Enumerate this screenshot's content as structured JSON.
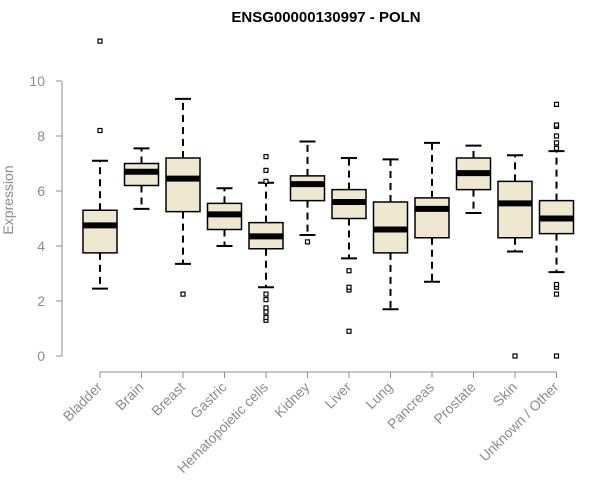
{
  "chart_data": {
    "type": "boxplot",
    "title": "ENSG00000130997 - POLN",
    "xlabel": "",
    "ylabel": "Expression",
    "ylim": [
      0,
      11.5
    ],
    "yticks": [
      0,
      2,
      4,
      6,
      8,
      10
    ],
    "categories": [
      "Bladder",
      "Brain",
      "Breast",
      "Gastric",
      "Hematopoietic cells",
      "Kidney",
      "Liver",
      "Lung",
      "Pancreas",
      "Prostate",
      "Skin",
      "Unknown / Other"
    ],
    "boxes": [
      {
        "whisker_low": 2.45,
        "q1": 3.75,
        "median": 4.75,
        "q3": 5.3,
        "whisker_high": 7.1,
        "outliers": [
          8.2,
          11.45
        ]
      },
      {
        "whisker_low": 5.35,
        "q1": 6.2,
        "median": 6.7,
        "q3": 7.0,
        "whisker_high": 7.55,
        "outliers": []
      },
      {
        "whisker_low": 3.35,
        "q1": 5.25,
        "median": 6.45,
        "q3": 7.2,
        "whisker_high": 9.35,
        "outliers": [
          2.25
        ]
      },
      {
        "whisker_low": 4.0,
        "q1": 4.6,
        "median": 5.15,
        "q3": 5.55,
        "whisker_high": 6.1,
        "outliers": []
      },
      {
        "whisker_low": 2.5,
        "q1": 3.9,
        "median": 4.35,
        "q3": 4.85,
        "whisker_high": 6.3,
        "outliers": [
          1.3,
          1.4,
          1.6,
          1.75,
          2.05,
          2.25,
          6.35,
          6.75,
          7.25
        ]
      },
      {
        "whisker_low": 4.4,
        "q1": 5.65,
        "median": 6.25,
        "q3": 6.55,
        "whisker_high": 7.8,
        "outliers": [
          4.15
        ]
      },
      {
        "whisker_low": 3.55,
        "q1": 5.0,
        "median": 5.6,
        "q3": 6.05,
        "whisker_high": 7.2,
        "outliers": [
          0.9,
          2.4,
          2.5,
          3.1
        ]
      },
      {
        "whisker_low": 1.7,
        "q1": 3.75,
        "median": 4.6,
        "q3": 5.6,
        "whisker_high": 7.15,
        "outliers": []
      },
      {
        "whisker_low": 2.7,
        "q1": 4.3,
        "median": 5.35,
        "q3": 5.75,
        "whisker_high": 7.75,
        "outliers": []
      },
      {
        "whisker_low": 5.2,
        "q1": 6.05,
        "median": 6.65,
        "q3": 7.2,
        "whisker_high": 7.65,
        "outliers": []
      },
      {
        "whisker_low": 3.8,
        "q1": 4.3,
        "median": 5.55,
        "q3": 6.35,
        "whisker_high": 7.3,
        "outliers": [
          0.0
        ]
      },
      {
        "whisker_low": 3.05,
        "q1": 4.45,
        "median": 5.0,
        "q3": 5.65,
        "whisker_high": 7.45,
        "outliers": [
          0.0,
          2.25,
          2.5,
          2.6,
          7.55,
          7.75,
          8.0,
          8.35,
          8.4,
          9.15
        ]
      }
    ],
    "grid": false,
    "legend": "none"
  },
  "colors": {
    "box_fill": "#efe8d0",
    "box_stroke": "#000000",
    "axis": "#8c8c8c",
    "title": "#000000"
  }
}
